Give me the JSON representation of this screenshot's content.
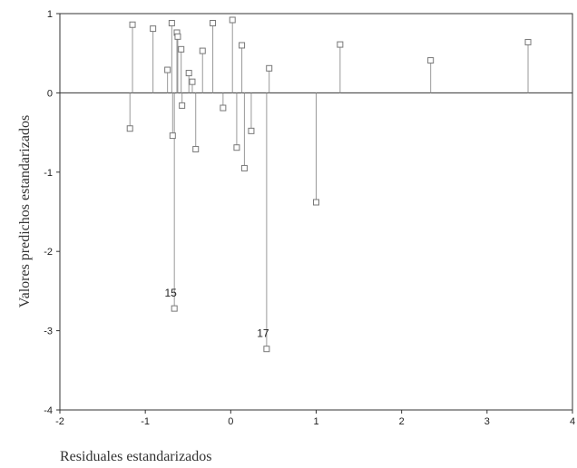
{
  "chart_data": {
    "type": "scatter",
    "style": "stem",
    "xlabel": "Residuales estandarizados",
    "ylabel": "Valores predichos estandarizados",
    "xlim": [
      -2,
      4
    ],
    "ylim": [
      -4,
      1
    ],
    "xticks": [
      "-2",
      "-1",
      "0",
      "1",
      "2",
      "3",
      "4"
    ],
    "yticks": [
      "1",
      "0",
      "-1",
      "-2",
      "-3",
      "-4"
    ],
    "baseline": 0,
    "grid": false,
    "colors": {
      "stem": "#999999",
      "marker": "#777777",
      "axis": "#333333"
    },
    "points": [
      {
        "x": -1.18,
        "y": -0.45
      },
      {
        "x": -1.15,
        "y": 0.86
      },
      {
        "x": -0.91,
        "y": 0.81
      },
      {
        "x": -0.74,
        "y": 0.29
      },
      {
        "x": -0.69,
        "y": 0.88
      },
      {
        "x": -0.68,
        "y": -0.54
      },
      {
        "x": -0.66,
        "y": -2.72,
        "label": "15"
      },
      {
        "x": -0.63,
        "y": 0.76
      },
      {
        "x": -0.62,
        "y": 0.71
      },
      {
        "x": -0.58,
        "y": 0.55
      },
      {
        "x": -0.57,
        "y": -0.16
      },
      {
        "x": -0.49,
        "y": 0.25
      },
      {
        "x": -0.45,
        "y": 0.14
      },
      {
        "x": -0.41,
        "y": -0.71
      },
      {
        "x": -0.33,
        "y": 0.53
      },
      {
        "x": -0.21,
        "y": 0.88
      },
      {
        "x": -0.09,
        "y": -0.19
      },
      {
        "x": 0.02,
        "y": 0.92
      },
      {
        "x": 0.07,
        "y": -0.69
      },
      {
        "x": 0.13,
        "y": 0.6
      },
      {
        "x": 0.16,
        "y": -0.95
      },
      {
        "x": 0.24,
        "y": -0.48
      },
      {
        "x": 0.42,
        "y": -3.23,
        "label": "17"
      },
      {
        "x": 0.45,
        "y": 0.31
      },
      {
        "x": 1.0,
        "y": -1.38
      },
      {
        "x": 1.28,
        "y": 0.61
      },
      {
        "x": 2.34,
        "y": 0.41
      },
      {
        "x": 3.48,
        "y": 0.64
      }
    ]
  }
}
